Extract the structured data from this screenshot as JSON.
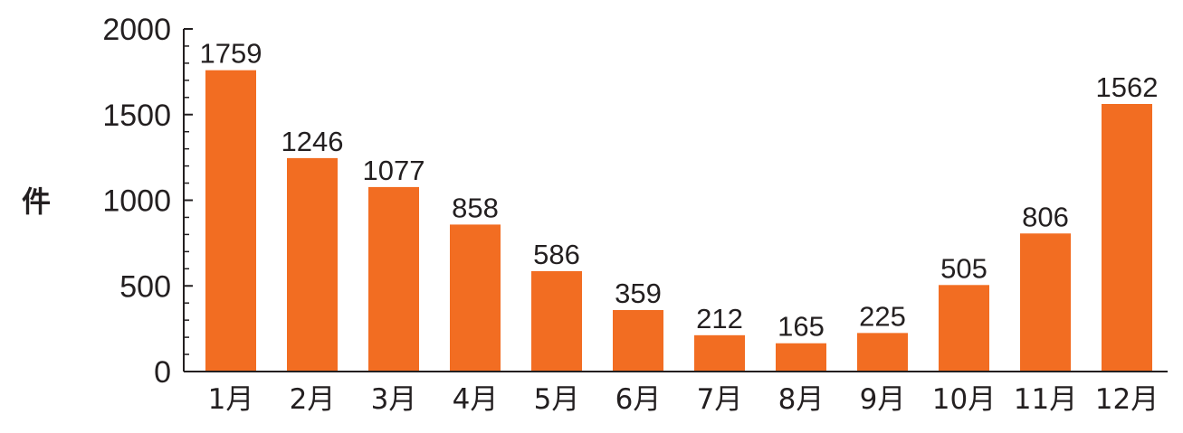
{
  "chart_data": {
    "type": "bar",
    "categories": [
      "1月",
      "2月",
      "3月",
      "4月",
      "5月",
      "6月",
      "7月",
      "8月",
      "9月",
      "10月",
      "11月",
      "12月"
    ],
    "values": [
      1759,
      1246,
      1077,
      858,
      586,
      359,
      212,
      165,
      225,
      505,
      806,
      1562
    ],
    "ylabel": "件",
    "xlabel": "",
    "title": "",
    "ylim": [
      0,
      2000
    ],
    "yticks": [
      0,
      500,
      1000,
      1500,
      2000
    ],
    "minor_tick_step": 100,
    "grid": false,
    "legend": "none",
    "bar_color": "#f26d22",
    "axis_color": "#231f20"
  }
}
